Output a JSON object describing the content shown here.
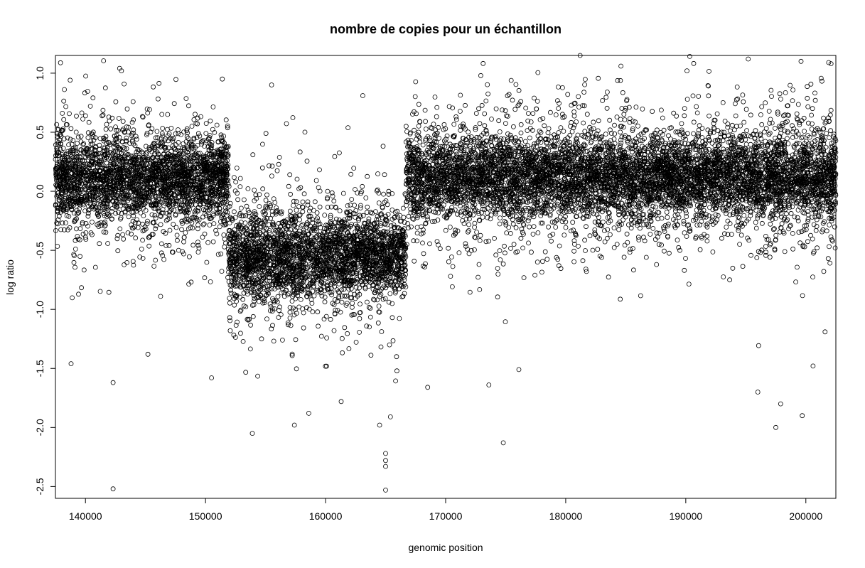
{
  "chart_data": {
    "type": "scatter",
    "title": "nombre de copies pour un échantillon",
    "xlabel": "genomic position",
    "ylabel": "log ratio",
    "xlim": [
      137500,
      202500
    ],
    "ylim": [
      -2.6,
      1.15
    ],
    "x_ticks": [
      140000,
      150000,
      160000,
      170000,
      180000,
      190000,
      200000
    ],
    "x_tick_labels": [
      "140000",
      "150000",
      "160000",
      "170000",
      "180000",
      "190000",
      "200000"
    ],
    "y_ticks": [
      1.0,
      0.5,
      0.0,
      -0.5,
      -1.0,
      -1.5,
      -2.0,
      -2.5
    ],
    "y_tick_labels": [
      "1.0",
      "0.5",
      "0.0",
      "-0.5",
      "-1.0",
      "-1.5",
      "-2.0",
      "-2.5"
    ],
    "marker": "open-circle",
    "point_color": "#000000",
    "grid": false,
    "legend": "none",
    "segments": [
      {
        "x_start": 137500,
        "x_end": 151900,
        "mean_log_ratio": 0.1
      },
      {
        "x_start": 151900,
        "x_end": 166700,
        "mean_log_ratio": -0.55
      },
      {
        "x_start": 166700,
        "x_end": 202500,
        "mean_log_ratio": 0.12
      }
    ],
    "notable_points": [
      {
        "x": 142300,
        "y": -2.52
      },
      {
        "x": 142300,
        "y": -1.62
      },
      {
        "x": 138800,
        "y": -1.46
      },
      {
        "x": 145200,
        "y": -1.38
      },
      {
        "x": 150500,
        "y": -1.58
      },
      {
        "x": 143000,
        "y": 1.02
      },
      {
        "x": 151400,
        "y": 0.95
      },
      {
        "x": 153900,
        "y": -2.05
      },
      {
        "x": 155500,
        "y": 0.9
      },
      {
        "x": 157400,
        "y": -1.98
      },
      {
        "x": 158600,
        "y": -1.88
      },
      {
        "x": 161300,
        "y": -1.78
      },
      {
        "x": 163100,
        "y": 0.81
      },
      {
        "x": 164500,
        "y": -1.98
      },
      {
        "x": 165000,
        "y": -2.22
      },
      {
        "x": 165000,
        "y": -2.28
      },
      {
        "x": 165000,
        "y": -2.33
      },
      {
        "x": 165000,
        "y": -2.53
      },
      {
        "x": 165400,
        "y": -1.91
      },
      {
        "x": 168500,
        "y": -1.66
      },
      {
        "x": 173600,
        "y": -1.64
      },
      {
        "x": 174800,
        "y": -2.13
      },
      {
        "x": 176100,
        "y": -1.51
      },
      {
        "x": 181200,
        "y": 1.15
      },
      {
        "x": 184600,
        "y": 1.06
      },
      {
        "x": 195200,
        "y": 1.12
      },
      {
        "x": 196000,
        "y": -1.7
      },
      {
        "x": 197500,
        "y": -2.0
      },
      {
        "x": 197900,
        "y": -1.8
      },
      {
        "x": 199700,
        "y": -1.9
      },
      {
        "x": 200600,
        "y": -1.48
      },
      {
        "x": 201600,
        "y": -1.19
      },
      {
        "x": 202100,
        "y": 1.08
      },
      {
        "x": 201900,
        "y": 1.09
      },
      {
        "x": 199600,
        "y": 1.1
      }
    ]
  }
}
